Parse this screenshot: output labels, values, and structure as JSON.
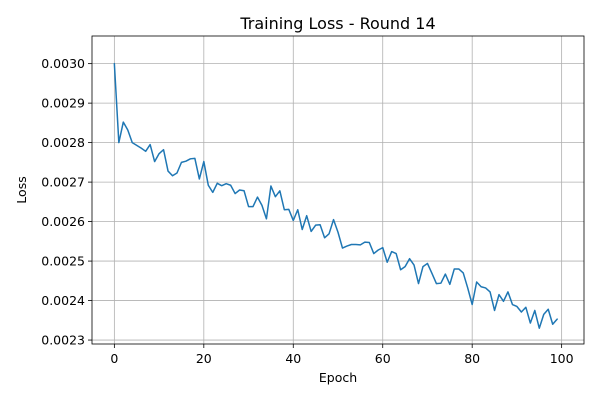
{
  "chart_data": {
    "type": "line",
    "title": "Training Loss - Round 14",
    "xlabel": "Epoch",
    "ylabel": "Loss",
    "xlim": [
      -5,
      105
    ],
    "ylim": [
      0.00229,
      0.00307
    ],
    "xticks": [
      0,
      20,
      40,
      60,
      80,
      100
    ],
    "xtick_labels": [
      "0",
      "20",
      "40",
      "60",
      "80",
      "100"
    ],
    "yticks": [
      0.0023,
      0.0024,
      0.0025,
      0.0026,
      0.0027,
      0.0028,
      0.0029,
      0.003
    ],
    "ytick_labels": [
      "0.0023",
      "0.0024",
      "0.0025",
      "0.0026",
      "0.0027",
      "0.0028",
      "0.0029",
      "0.0030"
    ],
    "grid": true,
    "series_color": "#1f77b4",
    "series": [
      {
        "x": [
          0,
          1,
          2,
          3,
          4,
          5,
          6,
          7,
          8,
          9,
          10,
          11,
          12,
          13,
          14,
          15,
          16,
          17,
          18,
          19,
          20,
          21,
          22,
          23,
          24,
          25,
          26,
          27,
          28,
          29,
          30,
          31,
          32,
          33,
          34,
          35,
          36,
          37,
          38,
          39,
          40,
          41,
          42,
          43,
          44,
          45,
          46,
          47,
          48,
          49,
          50,
          51,
          52,
          53,
          54,
          55,
          56,
          57,
          58,
          59,
          60,
          61,
          62,
          63,
          64,
          65,
          66,
          67,
          68,
          69,
          70,
          71,
          72,
          73,
          74,
          75,
          76,
          77,
          78,
          79,
          80,
          81,
          82,
          83,
          84,
          85,
          86,
          87,
          88,
          89,
          90,
          91,
          92,
          93,
          94,
          95,
          96,
          97,
          98,
          99
        ],
        "values": [
          0.003,
          0.0028,
          0.002852,
          0.002832,
          0.0028,
          0.002793,
          0.002786,
          0.002778,
          0.002795,
          0.002752,
          0.002772,
          0.002782,
          0.002728,
          0.002716,
          0.002723,
          0.00275,
          0.002753,
          0.002759,
          0.00276,
          0.002708,
          0.002752,
          0.002692,
          0.002674,
          0.002697,
          0.002691,
          0.002696,
          0.002692,
          0.002671,
          0.00268,
          0.002678,
          0.002638,
          0.002638,
          0.002662,
          0.002641,
          0.002607,
          0.00269,
          0.002663,
          0.002678,
          0.00263,
          0.002631,
          0.002603,
          0.00263,
          0.00258,
          0.002615,
          0.002575,
          0.002591,
          0.002592,
          0.002559,
          0.002569,
          0.002605,
          0.002573,
          0.002533,
          0.002538,
          0.002542,
          0.002542,
          0.002541,
          0.002548,
          0.002547,
          0.002519,
          0.002528,
          0.002534,
          0.002497,
          0.002524,
          0.002519,
          0.002478,
          0.002486,
          0.002506,
          0.00249,
          0.002443,
          0.002486,
          0.002494,
          0.002469,
          0.002443,
          0.002444,
          0.002467,
          0.002441,
          0.00248,
          0.00248,
          0.00247,
          0.002432,
          0.00239,
          0.002447,
          0.002435,
          0.002432,
          0.002422,
          0.002375,
          0.002415,
          0.002398,
          0.002422,
          0.00239,
          0.002385,
          0.002371,
          0.002383,
          0.002343,
          0.002375,
          0.00233,
          0.002365,
          0.002378,
          0.00234,
          0.002353
        ]
      }
    ]
  }
}
